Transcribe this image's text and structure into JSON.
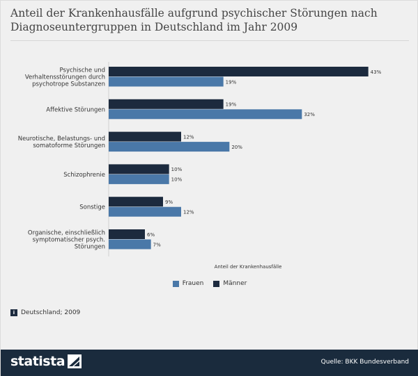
{
  "title": "Anteil der Krankenhausfälle aufgrund psychischer Störungen nach Diagnoseuntergruppen in Deutschland im Jahr 2009",
  "chart_data": {
    "type": "bar",
    "orientation": "horizontal",
    "title": "Anteil der Krankenhausfälle aufgrund psychischer Störungen nach Diagnoseuntergruppen in Deutschland im Jahr 2009",
    "xlabel": "Anteil der Krankenhausfälle",
    "ylabel": "",
    "xlim": [
      0,
      45
    ],
    "unit": "%",
    "grid": false,
    "legend_position": "bottom",
    "categories": [
      [
        "Psychische und",
        "Verhaltensstörungen durch",
        "psychotrope Substanzen"
      ],
      [
        "Affektive Störungen"
      ],
      [
        "Neurotische, Belastungs- und",
        "somatoforme Störungen"
      ],
      [
        "Schizophrenie"
      ],
      [
        "Sonstige"
      ],
      [
        "Organische, einschließlich",
        "symptomatischer psych.",
        "Störungen"
      ]
    ],
    "series": [
      {
        "name": "Männer",
        "color": "#1c2a3e",
        "values": [
          43,
          19,
          12,
          10,
          9,
          6
        ]
      },
      {
        "name": "Frauen",
        "color": "#4a78a8",
        "values": [
          19,
          32,
          20,
          10,
          12,
          7
        ]
      }
    ],
    "legend_order": [
      "Frauen",
      "Männer"
    ]
  },
  "legend": {
    "frauen": "Frauen",
    "maenner": "Männer"
  },
  "footnote": {
    "icon": "i",
    "text": "Deutschland; 2009"
  },
  "footer": {
    "logo": "statista",
    "source": "Quelle: BKK Bundesverband"
  },
  "colors": {
    "maenner": "#1c2a3e",
    "frauen": "#4a78a8",
    "footer_bg": "#1a2b3d"
  }
}
